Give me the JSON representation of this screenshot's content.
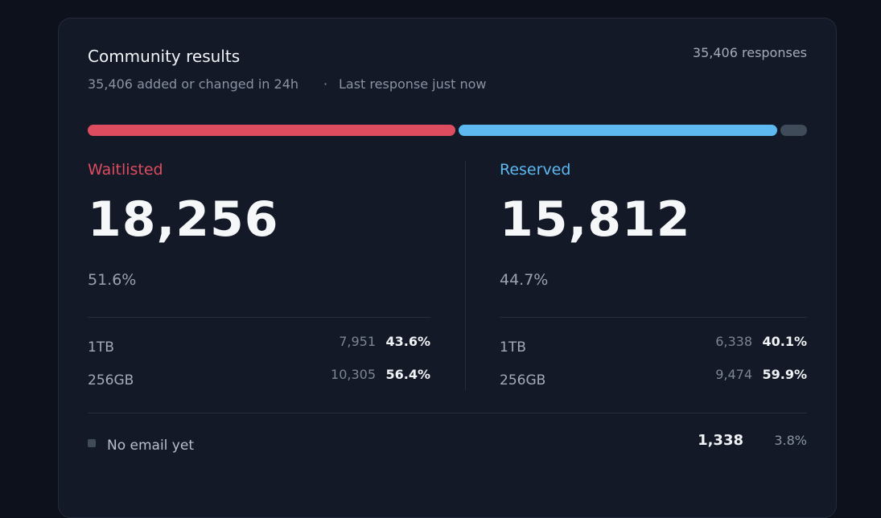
{
  "header": {
    "title": "Community results",
    "subtitle": "35,406 added or changed in 24h",
    "separator": "·",
    "last_response": "Last response just now",
    "responses": "35,406 responses"
  },
  "groups": [
    {
      "name": "Waitlisted",
      "color": "#dd4d5f",
      "count": {
        "value": 18256,
        "label": "18,256"
      },
      "share": "51.6%",
      "rows": [
        {
          "label": "1TB",
          "count": "7,951",
          "share": "43.6%"
        },
        {
          "label": "256GB",
          "count": "10,305",
          "share": "56.4%"
        }
      ]
    },
    {
      "name": "Reserved",
      "color": "#5db9f0",
      "count": {
        "value": 15812,
        "label": "15,812"
      },
      "share": "44.7%",
      "rows": [
        {
          "label": "1TB",
          "count": "6,338",
          "share": "40.1%"
        },
        {
          "label": "256GB",
          "count": "9,474",
          "share": "59.9%"
        }
      ]
    }
  ],
  "other": {
    "name": "No email yet",
    "color": "#3f4b58",
    "count": {
      "value": 1338,
      "label": "1,338"
    },
    "share": "3.8%"
  }
}
